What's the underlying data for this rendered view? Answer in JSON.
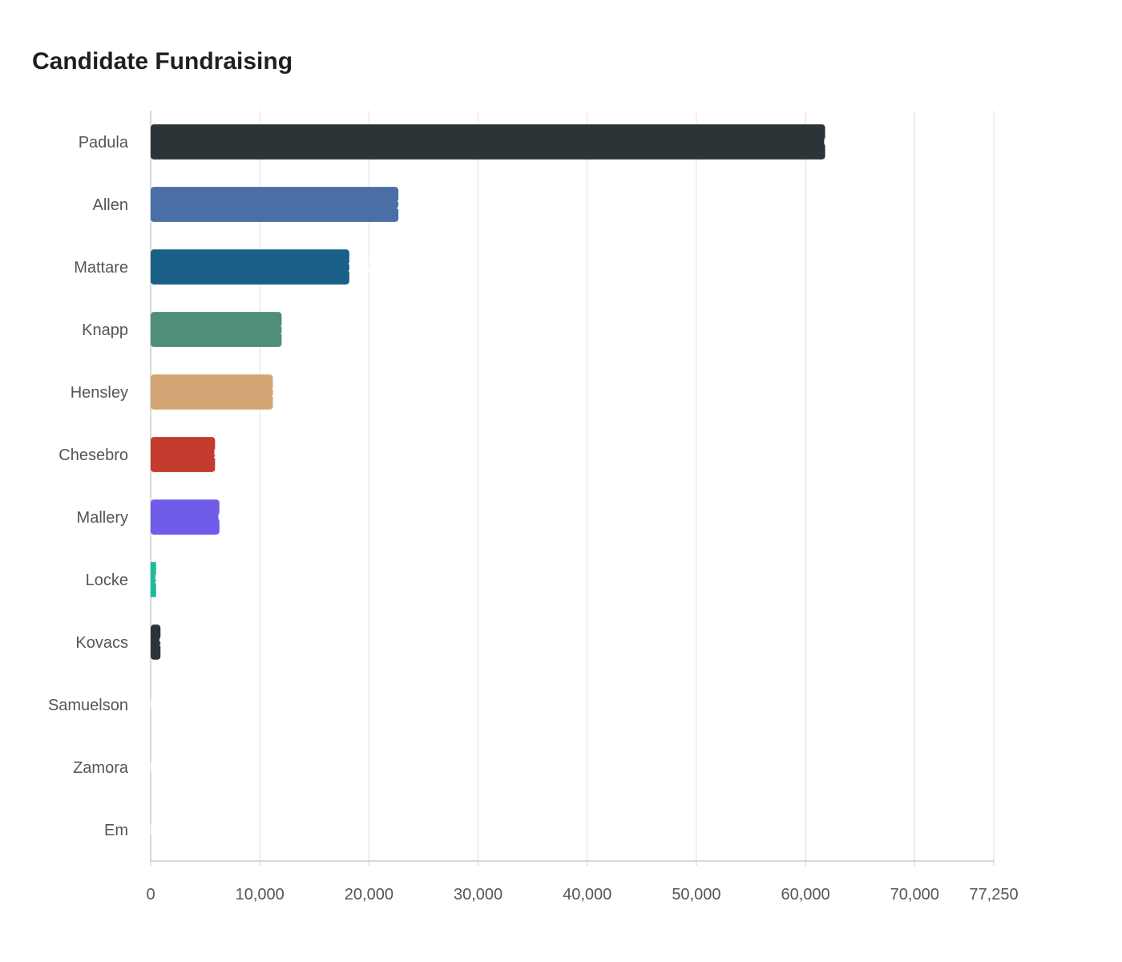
{
  "chart_data": {
    "type": "bar",
    "orientation": "horizontal",
    "title": "Candidate Fundraising",
    "xlabel": "",
    "ylabel": "",
    "categories": [
      "Padula",
      "Allen",
      "Mattare",
      "Knapp",
      "Hensley",
      "Chesebro",
      "Mallery",
      "Locke",
      "Kovacs",
      "Samuelson",
      "Zamora",
      "Em"
    ],
    "values": [
      61800,
      22700,
      18200,
      12000,
      11200,
      5900,
      6300,
      500,
      900,
      0,
      0,
      0
    ],
    "bar_colors": [
      "#2c3438",
      "#4b6ea6",
      "#195f88",
      "#4f8e7b",
      "#d4a574",
      "#c23b2e",
      "#6f5ce9",
      "#1abc9c",
      "#2c3438",
      "#2c3438",
      "#2c3438",
      "#2c3438"
    ],
    "xlim": [
      0,
      77250
    ],
    "xticks": [
      0,
      10000,
      20000,
      30000,
      40000,
      50000,
      60000,
      70000,
      77250
    ],
    "xtick_labels": [
      "0",
      "10,000",
      "20,000",
      "30,000",
      "40,000",
      "50,000",
      "60,000",
      "70,000",
      "77,250"
    ],
    "grid": true,
    "legend": "none"
  }
}
